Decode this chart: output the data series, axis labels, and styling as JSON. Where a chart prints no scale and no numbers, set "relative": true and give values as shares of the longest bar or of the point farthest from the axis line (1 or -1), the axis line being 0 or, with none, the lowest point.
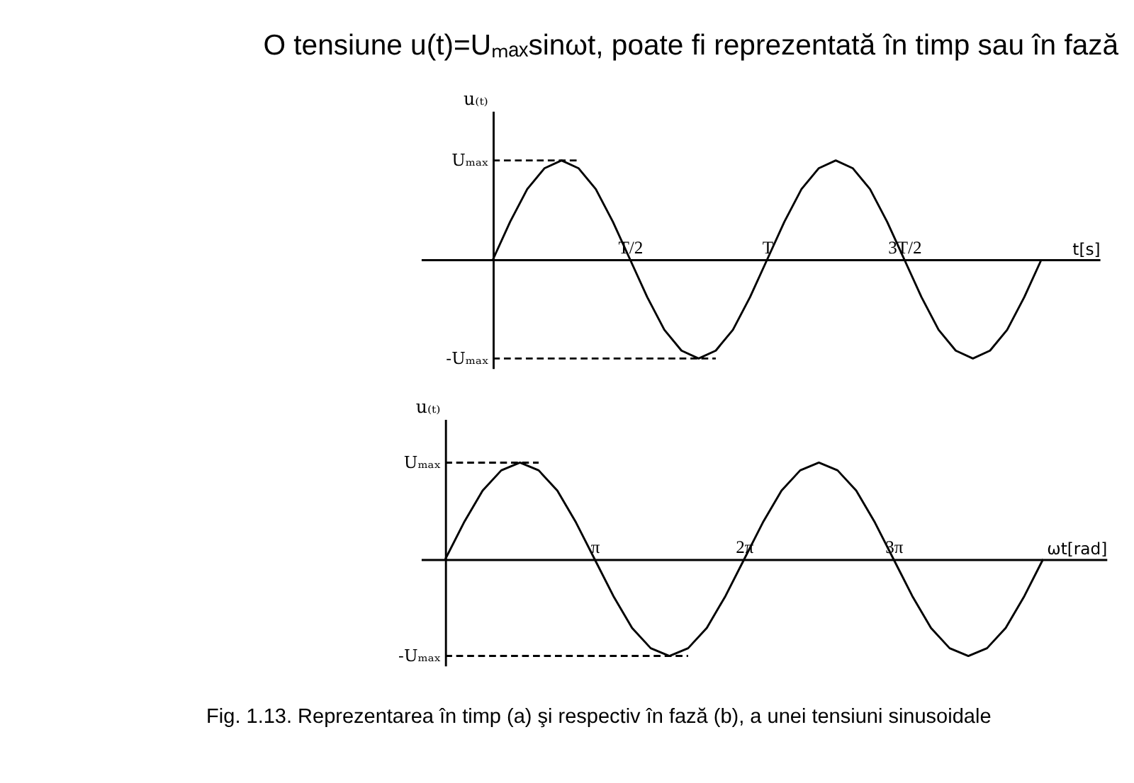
{
  "chart_data": [
    {
      "type": "line",
      "relative": true,
      "title": "O tensiune u(t)=Uₘₐₓsinωt, poate fi reprezentată în timp sau în fază",
      "xlabel": "t[s]",
      "ylabel": "u₍ₜ₎",
      "categories": [
        null,
        null,
        null,
        null,
        null,
        null,
        null,
        null,
        "T/2",
        null,
        null,
        null,
        null,
        null,
        null,
        null,
        "T",
        null,
        null,
        null,
        null,
        null,
        null,
        null,
        "3T/2",
        null,
        null,
        null,
        null,
        null,
        null,
        null,
        null
      ],
      "series": [
        {
          "color": "#000000",
          "values": [
            0,
            0.38,
            0.71,
            0.92,
            1,
            0.92,
            0.71,
            0.38,
            0,
            -0.38,
            -0.71,
            -0.92,
            -1,
            -0.92,
            -0.71,
            -0.38,
            0,
            0.38,
            0.71,
            0.92,
            1,
            0.92,
            0.71,
            0.38,
            0,
            -0.38,
            -0.71,
            -0.92,
            -1,
            -0.92,
            -0.71,
            -0.38,
            0
          ]
        }
      ],
      "ref_lines": [
        {
          "axis": "y",
          "value": 1,
          "label": "Uₘₐₓ",
          "line_style": "dashed",
          "color": "#000000"
        },
        {
          "axis": "y",
          "value": -1,
          "label": "-Uₘₐₓ",
          "line_style": "dashed",
          "color": "#000000"
        }
      ],
      "marker": "none",
      "line_style": "solid"
    },
    {
      "type": "line",
      "relative": true,
      "xlabel": "ωt[rad]",
      "ylabel": "u₍ₜ₎",
      "annotations": [
        "Fig. 1.13. Reprezentarea în timp (a) şi respectiv în fază (b), a unei tensiuni sinusoidale"
      ],
      "categories": [
        null,
        null,
        null,
        null,
        null,
        null,
        null,
        null,
        "π",
        null,
        null,
        null,
        null,
        null,
        null,
        null,
        "2π",
        null,
        null,
        null,
        null,
        null,
        null,
        null,
        "3π",
        null,
        null,
        null,
        null,
        null,
        null,
        null,
        null
      ],
      "series": [
        {
          "color": "#000000",
          "values": [
            0,
            0.38,
            0.71,
            0.92,
            1,
            0.92,
            0.71,
            0.38,
            0,
            -0.38,
            -0.71,
            -0.92,
            -1,
            -0.92,
            -0.71,
            -0.38,
            0,
            0.38,
            0.71,
            0.92,
            1,
            0.92,
            0.71,
            0.38,
            0,
            -0.38,
            -0.71,
            -0.92,
            -1,
            -0.92,
            -0.71,
            -0.38,
            0
          ]
        }
      ],
      "ref_lines": [
        {
          "axis": "y",
          "value": 1,
          "label": "Uₘₐₓ",
          "line_style": "dashed",
          "color": "#000000"
        },
        {
          "axis": "y",
          "value": -1,
          "label": "-Uₘₐₓ",
          "line_style": "dashed",
          "color": "#000000"
        }
      ],
      "marker": "none",
      "line_style": "solid"
    }
  ]
}
